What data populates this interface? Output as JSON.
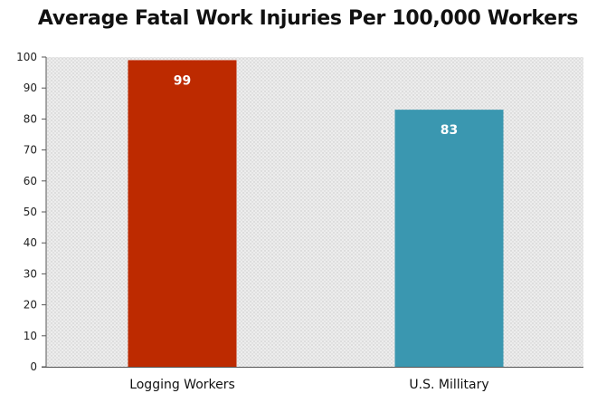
{
  "chart_data": {
    "type": "bar",
    "title": "Average Fatal Work Injuries Per 100,000 Workers",
    "categories": [
      "Logging Workers",
      "U.S. Millitary"
    ],
    "values": [
      99,
      83
    ],
    "data_labels": [
      "99",
      "83"
    ],
    "bar_colors": [
      "#bd2a00",
      "#3a97b0"
    ],
    "ylim": [
      0,
      100
    ],
    "yticks": [
      0,
      10,
      20,
      30,
      40,
      50,
      60,
      70,
      80,
      90,
      100
    ],
    "xlabel": "",
    "ylabel": "",
    "grid": false,
    "legend": "none",
    "background": "dotted gray"
  }
}
